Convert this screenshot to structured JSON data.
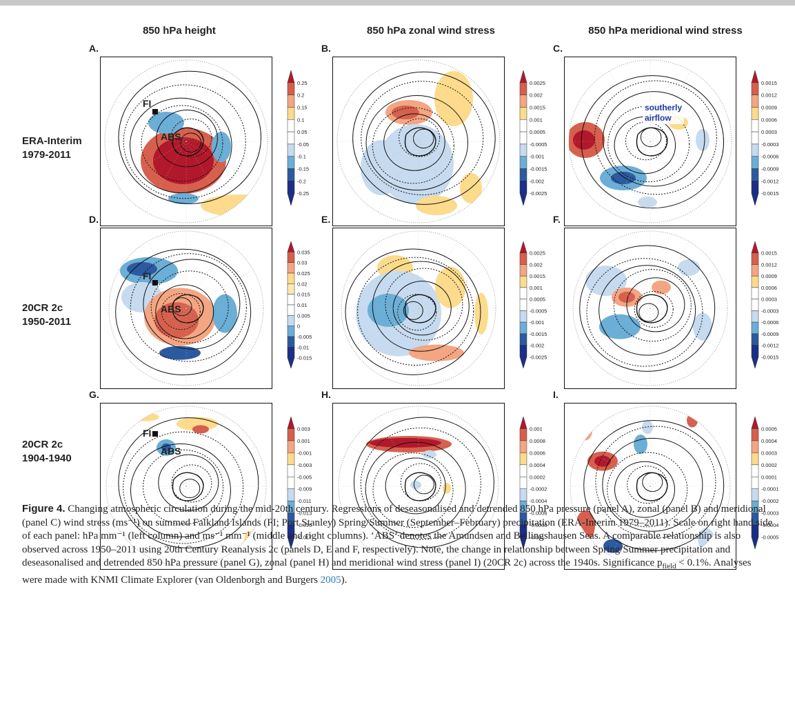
{
  "columns": [
    "850 hPa height",
    "850 hPa zonal wind stress",
    "850 hPa meridional wind stress"
  ],
  "rows": [
    {
      "line1": "ERA-Interim",
      "line2": "1979-2011"
    },
    {
      "line1": "20CR 2c",
      "line2": "1950-2011"
    },
    {
      "line1": "20CR 2c",
      "line2": "1904-1940"
    }
  ],
  "panels": [
    {
      "letter": "A.",
      "ticks": [
        "0.25",
        "0.2",
        "0.15",
        "0.1",
        "0.05",
        "-0.05",
        "-0.1",
        "-0.15",
        "-0.2",
        "-0.25"
      ]
    },
    {
      "letter": "B.",
      "ticks": [
        "0.0025",
        "0.002",
        "0.0015",
        "0.001",
        "0.0005",
        "-0.0005",
        "-0.001",
        "-0.0015",
        "-0.002",
        "-0.0025"
      ]
    },
    {
      "letter": "C.",
      "ticks": [
        "0.0015",
        "0.0012",
        "0.0009",
        "0.0006",
        "0.0003",
        "-0.0003",
        "-0.0006",
        "-0.0009",
        "-0.0012",
        "-0.0015"
      ]
    },
    {
      "letter": "D.",
      "ticks": [
        "0.035",
        "0.03",
        "0.025",
        "0.02",
        "0.015",
        "0.01",
        "0.005",
        "0",
        "-0.005",
        "-0.01",
        "-0.015"
      ]
    },
    {
      "letter": "E.",
      "ticks": [
        "0.0025",
        "0.002",
        "0.0015",
        "0.001",
        "0.0005",
        "-0.0005",
        "-0.001",
        "-0.0015",
        "-0.002",
        "-0.0025"
      ]
    },
    {
      "letter": "F.",
      "ticks": [
        "0.0015",
        "0.0012",
        "0.0009",
        "0.0006",
        "0.0003",
        "-0.0003",
        "-0.0006",
        "-0.0009",
        "-0.0012",
        "-0.0015"
      ]
    },
    {
      "letter": "G.",
      "ticks": [
        "0.003",
        "0.001",
        "-0.001",
        "-0.003",
        "-0.005",
        "-0.009",
        "-0.011",
        "-0.013",
        "-0.015",
        "-0.017"
      ]
    },
    {
      "letter": "H.",
      "ticks": [
        "0.001",
        "0.0008",
        "0.0006",
        "0.0004",
        "0.0002",
        "-0.0002",
        "-0.0004",
        "-0.0006",
        "-0.0008",
        "-0.001"
      ]
    },
    {
      "letter": "I.",
      "ticks": [
        "0.0005",
        "0.0004",
        "0.0003",
        "0.0002",
        "0.0001",
        "-0.0001",
        "-0.0002",
        "-0.0003",
        "-0.0004",
        "-0.0005"
      ]
    }
  ],
  "annotations": {
    "fi": "FI",
    "abs": "ABS",
    "southerly_line1": "southerly",
    "southerly_line2": "airflow"
  },
  "colors": {
    "red_dark": "#b2182b",
    "red": "#d6604d",
    "orange": "#f4a582",
    "yellow": "#fddb8c",
    "blue_light": "#c6dbef",
    "blue": "#6baed6",
    "blue_dark": "#2c5aa0",
    "navy": "#1a2f8a"
  },
  "caption": {
    "label": "Figure 4.",
    "text": "Changing atmospheric circulation during the mid-20th century. Regressions of deseasonalised and detrended 850 hPa pressure (panel A), zonal (panel B) and meridional (panel C) wind stress (ms⁻¹) on summed Falkland Islands (FI; Port Stanley) Spring/Summer (September–February) precipitation (ERA-Interim 1979–2011). Scale on right hand side of each panel: hPa mm⁻¹ (left column) and ms⁻¹ mm⁻¹ (middle and right columns). ‘ABS’ denotes the Amundsen and Bellingshausen Seas. A comparable relationship is also observed across 1950–2011 using 20th Century Reanalysis 2c (panels D, E and F, respectively). Note, the change in relationship between Spring/Summer precipitation and deseasonalised and detrended 850 hPa pressure (panel G), zonal (panel H) and meridional wind stress (panel I) (20CR 2c) across the 1940s. Significance p",
    "subscript": "field",
    "text_after": " < 0.1%. Analyses were made with KNMI Climate Explorer (van Oldenborgh and Burgers ",
    "year": "2005",
    "end": ")."
  }
}
